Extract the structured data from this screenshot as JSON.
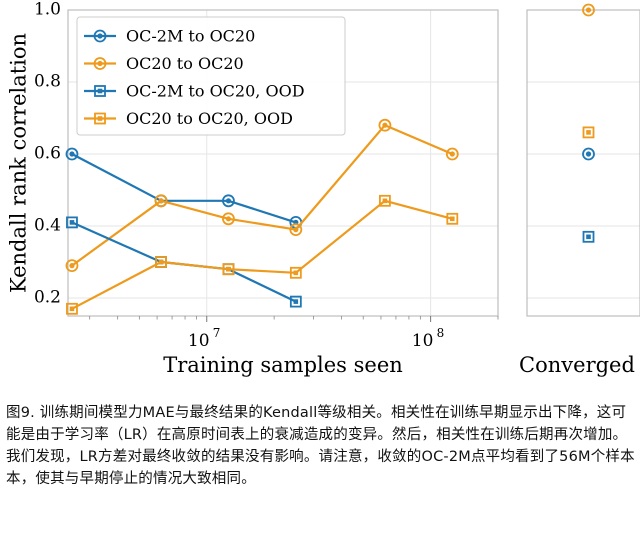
{
  "chart_data": {
    "type": "line",
    "ylabel": "Kendall rank correlation",
    "main_panel": {
      "xlabel": "Training samples seen",
      "x_scale": "log",
      "xlim": [
        2400000,
        200000000
      ],
      "ylim": [
        0.15,
        1.0
      ],
      "y_ticks": [
        0.2,
        0.4,
        0.6,
        0.8,
        1.0
      ],
      "y_tick_labels": [
        "0.2",
        "0.4",
        "0.6",
        "0.8",
        "1.0"
      ],
      "x_ticks": [
        10000000,
        100000000
      ],
      "x_tick_labels": [
        "10",
        "10"
      ],
      "x_tick_exponents": [
        "7",
        "8"
      ],
      "grid": true
    },
    "converged_panel": {
      "label": "Converged",
      "points": [
        {
          "series": 0,
          "y": 0.6
        },
        {
          "series": 1,
          "y": 1.0
        },
        {
          "series": 2,
          "y": 0.37
        },
        {
          "series": 3,
          "y": 0.66
        }
      ]
    },
    "legend_position": "top-left",
    "series": [
      {
        "name": "OC-2M to OC20",
        "color": "#1f77b4",
        "marker": "circle",
        "x": [
          2500000,
          6250000,
          12500000,
          25000000
        ],
        "y": [
          0.6,
          0.47,
          0.47,
          0.41
        ]
      },
      {
        "name": "OC20 to OC20",
        "color": "#ee9a1c",
        "marker": "circle",
        "x": [
          2500000,
          6250000,
          12500000,
          25000000,
          62500000,
          125000000
        ],
        "y": [
          0.29,
          0.47,
          0.42,
          0.39,
          0.68,
          0.6
        ]
      },
      {
        "name": "OC-2M to OC20, OOD",
        "color": "#1f77b4",
        "marker": "square",
        "x": [
          2500000,
          6250000,
          12500000,
          25000000
        ],
        "y": [
          0.41,
          0.3,
          0.28,
          0.19
        ]
      },
      {
        "name": "OC20 to OC20, OOD",
        "color": "#ee9a1c",
        "marker": "square",
        "x": [
          2500000,
          6250000,
          12500000,
          25000000,
          62500000,
          125000000
        ],
        "y": [
          0.17,
          0.3,
          0.28,
          0.27,
          0.47,
          0.42
        ]
      }
    ]
  },
  "caption": "图9. 训练期间模型力MAE与最终结果的Kendall等级相关。相关性在训练早期显示出下降，这可能是由于学习率（LR）在高原时间表上的衰减造成的变异。然后，相关性在训练后期再次增加。我们发现，LR方差对最终收敛的结果没有影响。请注意，收敛的OC-2M点平均看到了56M个样本本，使其与早期停止的情况大致相同。"
}
